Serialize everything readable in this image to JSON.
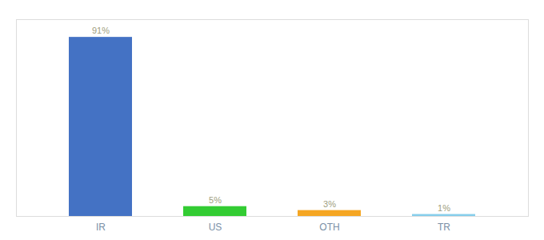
{
  "chart_data": {
    "type": "bar",
    "categories": [
      "IR",
      "US",
      "OTH",
      "TR"
    ],
    "values": [
      91,
      5,
      3,
      1
    ],
    "value_labels": [
      "91%",
      "5%",
      "3%",
      "1%"
    ],
    "colors": [
      "#4472c4",
      "#33cc33",
      "#f5a623",
      "#87ceeb"
    ],
    "ylim": [
      0,
      100
    ],
    "grid": false,
    "data_labels": true,
    "tick_labels": "x"
  }
}
